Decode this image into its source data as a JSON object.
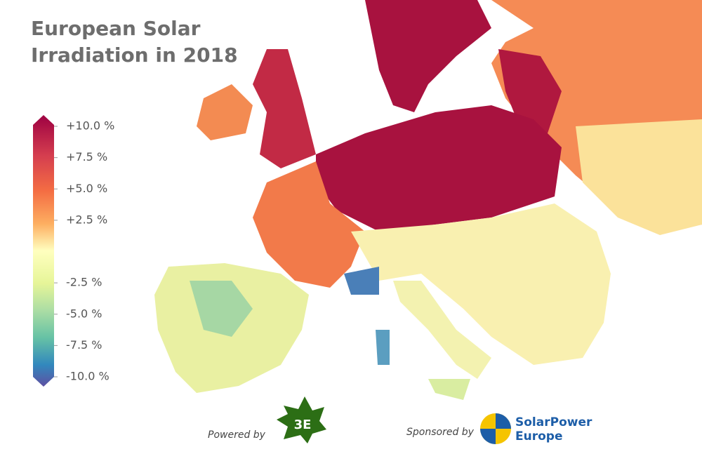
{
  "title": [
    "European Solar",
    "Irradiation in 2018"
  ],
  "legend": {
    "ticks": [
      {
        "value": 10,
        "label": "+10.0 %"
      },
      {
        "value": 7.5,
        "label": "+7.5 %"
      },
      {
        "value": 5,
        "label": "+5.0 %"
      },
      {
        "value": 2.5,
        "label": "+2.5 %"
      },
      {
        "value": -2.5,
        "label": "-2.5 %"
      },
      {
        "value": -5,
        "label": "-5.0 %"
      },
      {
        "value": -7.5,
        "label": "-7.5 %"
      },
      {
        "value": -10,
        "label": "-10.0 %"
      }
    ]
  },
  "footer": {
    "powered_by": "Powered by",
    "powered_logo": "3E",
    "sponsored_by": "Sponsored by",
    "sponsor": [
      "SolarPower",
      "Europe"
    ]
  }
}
